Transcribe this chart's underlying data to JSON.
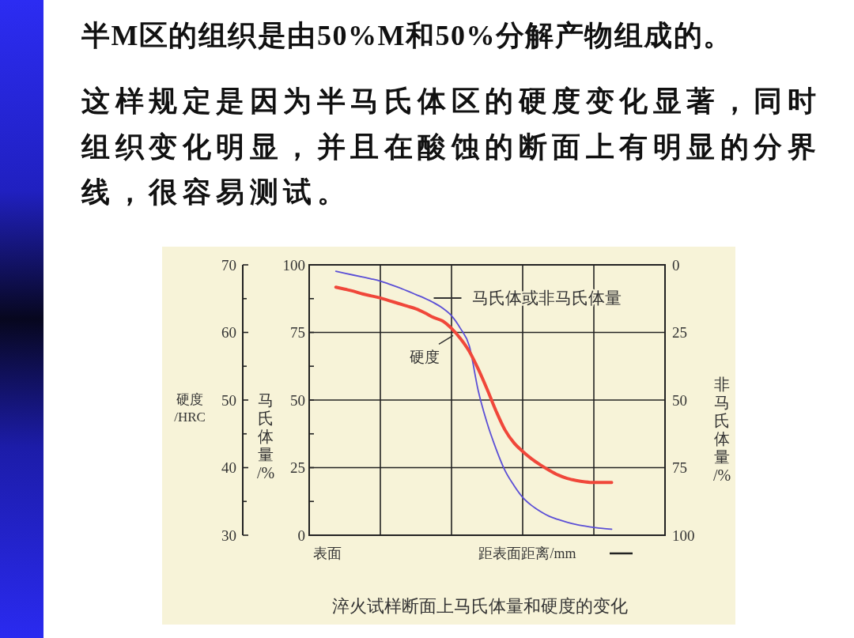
{
  "chart_data": {
    "type": "line",
    "title": "半M区的组织是由50%M和50%分解产物组成的。",
    "subtitle": "这样规定是因为半马氏体区的硬度变化显著，同时组织变化明显，并且在酸蚀的断面上有明显的分界线，很容易测试。",
    "annotations": [
      "淬火试样断面上马氏体量和硬度的变化"
    ],
    "categories": [
      null,
      null,
      "表面",
      null,
      null,
      null,
      null,
      null,
      null,
      null,
      null,
      null,
      null,
      null,
      null,
      null,
      null,
      null,
      null,
      null,
      null,
      null,
      null,
      null,
      null,
      null,
      null,
      null,
      null,
      null,
      null,
      null,
      null,
      null,
      null,
      null,
      null,
      null,
      null,
      null,
      null
    ],
    "xlabel": "距表面距离/mm",
    "ylabel": "马氏体量/%",
    "y2label": "非马氏体量/%",
    "y3label": "硬度/HRC",
    "ylim": [
      0,
      100
    ],
    "yticks": [
      0,
      {
        "value": 12.5,
        "label": null
      },
      25,
      {
        "value": 37.5,
        "label": null
      },
      50,
      {
        "value": 62.5,
        "label": null
      },
      75,
      {
        "value": 87.5,
        "label": null
      },
      100
    ],
    "y2lim": [
      100,
      0
    ],
    "y2ticks": [
      0,
      25,
      50,
      75,
      100
    ],
    "y3lim": [
      30,
      70
    ],
    "y3ticks": [
      30,
      {
        "value": 35,
        "label": null
      },
      40,
      {
        "value": 45,
        "label": null
      },
      50,
      {
        "value": 55,
        "label": null
      },
      60,
      {
        "value": 65,
        "label": null
      },
      70
    ],
    "grid": true,
    "series": [
      {
        "name": "马氏体或非马氏体量",
        "color": "#5b4fd6",
        "values": [
          null,
          null,
          null,
          97.6,
          96.9,
          96.2,
          95.5,
          94.8,
          94.0,
          92.9,
          91.7,
          90.4,
          89.0,
          87.6,
          86.0,
          84.0,
          81.2,
          76.5,
          70.0,
          53.5,
          41.5,
          32.0,
          24.0,
          18.5,
          14.0,
          11.0,
          8.8,
          7.0,
          5.8,
          4.8,
          4.0,
          3.4,
          2.9,
          2.5,
          2.2,
          null,
          null,
          null,
          null,
          null,
          null
        ]
      },
      {
        "name": "硬度",
        "color": "#f0473a",
        "axis": "y3",
        "values": [
          null,
          null,
          null,
          66.7,
          66.4,
          66.1,
          65.7,
          65.4,
          65.1,
          64.7,
          64.3,
          63.9,
          63.5,
          62.9,
          62.2,
          61.7,
          60.6,
          59.1,
          57.2,
          54.6,
          51.6,
          48.4,
          45.6,
          43.7,
          42.4,
          41.3,
          40.4,
          39.6,
          38.9,
          38.4,
          38.1,
          37.9,
          37.8,
          37.8,
          37.8,
          null,
          null,
          null,
          null,
          null,
          null
        ]
      }
    ]
  }
}
